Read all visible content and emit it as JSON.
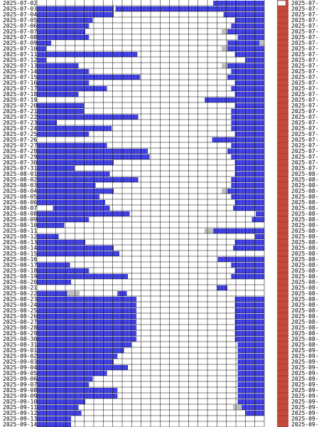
{
  "chart_data": {
    "type": "timeline",
    "categories": [
      "2025-07-02",
      "2025-07-03",
      "2025-07-04",
      "2025-07-05",
      "2025-07-06",
      "2025-07-07",
      "2025-07-08",
      "2025-07-09",
      "2025-07-10",
      "2025-07-11",
      "2025-07-12",
      "2025-07-13",
      "2025-07-14",
      "2025-07-15",
      "2025-07-16",
      "2025-07-17",
      "2025-07-18",
      "2025-07-19",
      "2025-07-20",
      "2025-07-21",
      "2025-07-22",
      "2025-07-23",
      "2025-07-24",
      "2025-07-25",
      "2025-07-26",
      "2025-07-27",
      "2025-07-28",
      "2025-07-29",
      "2025-07-30",
      "2025-07-31",
      "2025-08-01",
      "2025-08-02",
      "2025-08-03",
      "2025-08-04",
      "2025-08-05",
      "2025-08-06",
      "2025-08-07",
      "2025-08-08",
      "2025-08-09",
      "2025-08-10",
      "2025-08-11",
      "2025-08-12",
      "2025-08-13",
      "2025-08-14",
      "2025-08-15",
      "2025-08-16",
      "2025-08-17",
      "2025-08-18",
      "2025-08-19",
      "2025-08-20",
      "2025-08-21",
      "2025-08-22",
      "2025-08-23",
      "2025-08-24",
      "2025-08-25",
      "2025-08-26",
      "2025-08-27",
      "2025-08-28",
      "2025-08-29",
      "2025-08-30",
      "2025-08-31",
      "2025-09-01",
      "2025-09-02",
      "2025-09-03",
      "2025-09-04",
      "2025-09-05",
      "2025-09-06",
      "2025-09-07",
      "2025-09-08",
      "2025-09-09",
      "2025-09-10",
      "2025-09-11",
      "2025-09-12",
      "2025-09-13",
      "2025-09-14"
    ],
    "segments": [
      [
        [
          18.6,
          24
        ]
      ],
      [
        [
          0,
          8.1
        ],
        [
          8.3,
          24
        ]
      ],
      [
        [
          0,
          8.1
        ],
        [
          19.7,
          24
        ]
      ],
      [
        [
          0,
          5.9
        ],
        [
          20.9,
          24
        ]
      ],
      [
        [
          0,
          5.5
        ],
        [
          20.5,
          24
        ]
      ],
      [
        [
          0,
          5.1
        ],
        [
          20.1,
          24
        ]
      ],
      [
        [
          0,
          5.5
        ],
        [
          21.2,
          24
        ]
      ],
      [
        [
          0,
          1.5
        ],
        [
          20.1,
          23.5
        ]
      ],
      [
        [
          0,
          1
        ],
        [
          20.1,
          24
        ]
      ],
      [
        [
          0,
          10.6
        ],
        [
          20.9,
          24
        ]
      ],
      [
        [
          0,
          1
        ],
        [
          22,
          24
        ]
      ],
      [
        [
          0,
          4.4
        ],
        [
          20.1,
          24
        ]
      ],
      [
        [
          0,
          5.5
        ],
        [
          20.5,
          24
        ]
      ],
      [
        [
          0,
          10.9
        ],
        [
          20.1,
          24
        ]
      ],
      [
        [
          0,
          5.5
        ],
        [
          20.9,
          24
        ]
      ],
      [
        [
          0,
          7.4
        ],
        [
          20.5,
          24
        ]
      ],
      [
        [
          0,
          4.4
        ],
        [
          20.9,
          24
        ]
      ],
      [
        [
          17.7,
          24
        ]
      ],
      [
        [
          0,
          5
        ],
        [
          20.9,
          24
        ]
      ],
      [
        [
          0,
          5
        ],
        [
          20.5,
          24
        ]
      ],
      [
        [
          0,
          10.7
        ],
        [
          20.5,
          24
        ]
      ],
      [
        [
          0,
          2.1
        ],
        [
          20.5,
          24
        ]
      ],
      [
        [
          0,
          7.9
        ],
        [
          20.5,
          24
        ]
      ],
      [
        [
          0,
          5.5
        ],
        [
          20.9,
          24
        ]
      ],
      [
        [
          18.5,
          24
        ]
      ],
      [
        [
          0,
          7.4
        ],
        [
          20.5,
          24
        ]
      ],
      [
        [
          0,
          11.7
        ],
        [
          20.1,
          24
        ]
      ],
      [
        [
          0,
          11.9
        ],
        [
          20.5,
          24
        ]
      ],
      [
        [
          0,
          8.1
        ],
        [
          20.9,
          24
        ]
      ],
      [
        [
          0,
          4
        ],
        [
          20.9,
          24
        ]
      ],
      [
        [
          0,
          7.7
        ],
        [
          20.9,
          24
        ]
      ],
      [
        [
          0,
          10.7
        ],
        [
          20.5,
          24
        ]
      ],
      [
        [
          0,
          6.2
        ],
        [
          20.5,
          24
        ]
      ],
      [
        [
          0,
          8.1
        ],
        [
          20.1,
          24
        ]
      ],
      [
        [
          0,
          6.6
        ],
        [
          20.5,
          24
        ]
      ],
      [
        [
          0,
          7.2
        ],
        [
          20.9,
          24
        ]
      ],
      [
        [
          1.7,
          7.7
        ],
        [
          20.7,
          24
        ]
      ],
      [
        [
          0,
          9.8
        ],
        [
          23.1,
          24
        ]
      ],
      [
        [
          0,
          5.5
        ],
        [
          22.7,
          24
        ]
      ],
      [
        [
          0,
          2.9
        ]
      ],
      [
        [
          18.6,
          24
        ]
      ],
      [
        [
          0,
          2.3
        ],
        [
          23,
          24
        ]
      ],
      [
        [
          0,
          5.1
        ],
        [
          20.9,
          24
        ]
      ],
      [
        [
          0,
          8.1
        ],
        [
          20.7,
          24
        ]
      ],
      [
        [
          0,
          8.7
        ]
      ],
      [
        [
          19.1,
          24
        ]
      ],
      [
        [
          0,
          3.5
        ],
        [
          20.5,
          24
        ]
      ],
      [
        [
          0,
          5.5
        ],
        [
          20.9,
          24
        ]
      ],
      [
        [
          0,
          9.6
        ],
        [
          20.5,
          24
        ]
      ],
      [
        [
          0,
          3.6
        ]
      ],
      [
        [
          19,
          20.1
        ]
      ],
      [
        [
          0,
          3.2
        ],
        [
          8.5,
          9.5
        ]
      ],
      [
        [
          0,
          10.5
        ],
        [
          20.9,
          24
        ]
      ],
      [
        [
          0,
          10.5
        ],
        [
          20.9,
          24
        ]
      ],
      [
        [
          0,
          10.5
        ],
        [
          20.9,
          24
        ]
      ],
      [
        [
          0,
          10.5
        ],
        [
          20.9,
          24
        ]
      ],
      [
        [
          0,
          10.5
        ],
        [
          20.9,
          24
        ]
      ],
      [
        [
          0,
          10.5
        ],
        [
          20.9,
          24
        ]
      ],
      [
        [
          0,
          10.5
        ],
        [
          20.9,
          24
        ]
      ],
      [
        [
          0,
          10.5
        ],
        [
          20.9,
          24
        ]
      ],
      [
        [
          0,
          10
        ],
        [
          21.2,
          24
        ]
      ],
      [
        [
          0,
          9.2
        ],
        [
          21.2,
          24
        ]
      ],
      [
        [
          0,
          8.5
        ],
        [
          21.2,
          24
        ]
      ],
      [
        [
          0,
          8.1
        ],
        [
          21.2,
          24
        ]
      ],
      [
        [
          0,
          9.6
        ],
        [
          21.2,
          24
        ]
      ],
      [
        [
          0,
          7.4
        ],
        [
          21.2,
          24
        ]
      ],
      [
        [
          0,
          5.9
        ],
        [
          21.2,
          24
        ]
      ],
      [
        [
          0,
          5.5
        ],
        [
          21.2,
          24
        ]
      ],
      [
        [
          0,
          8.5
        ],
        [
          21.2,
          24
        ]
      ],
      [
        [
          0,
          8.5
        ],
        [
          21.2,
          24
        ]
      ],
      [
        [
          0,
          5.1
        ],
        [
          21.2,
          24
        ]
      ],
      [
        [
          0,
          4.4
        ],
        [
          21.6,
          24
        ]
      ],
      [
        [
          0,
          4.7
        ],
        [
          22,
          24
        ]
      ],
      [
        [
          0,
          3.6
        ]
      ],
      [
        [
          0,
          3.6
        ]
      ]
    ],
    "gray_segments": [
      [],
      [],
      [],
      [],
      [],
      [
        [
          19.5,
          20.1
        ]
      ],
      [],
      [
        [
          23.5,
          24
        ]
      ],
      [
        [
          19.5,
          20.1
        ]
      ],
      [],
      [],
      [
        [
          19.5,
          20.1
        ]
      ],
      [],
      [],
      [],
      [],
      [],
      [],
      [],
      [],
      [],
      [],
      [],
      [],
      [],
      [],
      [],
      [],
      [],
      [],
      [],
      [],
      [],
      [
        [
          19.5,
          20.1
        ]
      ],
      [],
      [],
      [],
      [],
      [],
      [],
      [
        [
          17.7,
          18.6
        ]
      ],
      [],
      [],
      [],
      [],
      [],
      [],
      [],
      [],
      [],
      [],
      [
        [
          3.2,
          4.5
        ]
      ],
      [],
      [],
      [],
      [],
      [],
      [],
      [],
      [],
      [],
      [],
      [],
      [],
      [],
      [],
      [],
      [],
      [],
      [],
      [],
      [
        [
          20.7,
          21.6
        ]
      ],
      [],
      [],
      []
    ],
    "xlim": [
      0,
      24
    ],
    "xticks": [
      0,
      1,
      2,
      3,
      4,
      5,
      6,
      7,
      8,
      9,
      10,
      11,
      12,
      13,
      14,
      15,
      16,
      17,
      18,
      19,
      20,
      21,
      22,
      23,
      24
    ],
    "color": "#2222d8",
    "gray_color": "#c0c0c0",
    "grid": true
  }
}
